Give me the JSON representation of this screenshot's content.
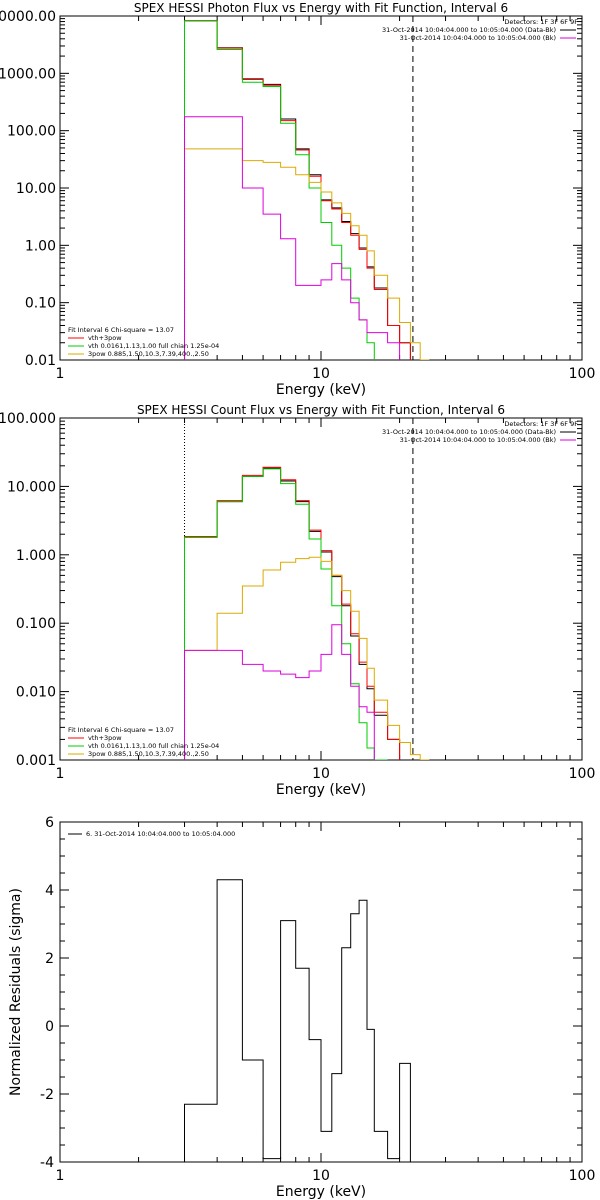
{
  "chart_data": [
    {
      "type": "line",
      "title": "SPEX HESSI Photon Flux vs Energy with Fit Function, Interval 6",
      "xlabel": "Energy (keV)",
      "ylabel": "",
      "xscale": "log",
      "yscale": "log",
      "xlim": [
        1,
        100
      ],
      "ylim": [
        0.01,
        10000
      ],
      "xtick_labels": [
        "1",
        "10",
        "100"
      ],
      "ytick_labels": [
        "0.01",
        "0.10",
        "1.00",
        "10.00",
        "100.00",
        "1000.00",
        "10000.00"
      ],
      "legend_topright": [
        "Detectors: 1F 3F 6F 9F",
        "31-Oct-2014 10:04:04.000 to 10:05:04.000 (Data-Bk)",
        "31-Oct-2014 10:04:04.000 to 10:05:04.000 (Bk)"
      ],
      "legend_bottomleft": [
        "Fit Interval  6     Chi-square = 13.07",
        "vth+3pow",
        "vth 0.0161,1.13,1.00   full chian 1.25e-04",
        "3pow  0.885,1.50,10.3,7.39,400.,2.50"
      ],
      "vlines": [
        {
          "x": 3.0,
          "style": "dotted"
        },
        {
          "x": 22.5,
          "style": "dashed"
        }
      ],
      "bin_edges": [
        3.0,
        4.0,
        5.0,
        6.0,
        7.0,
        8.0,
        9.0,
        10.0,
        11.0,
        12.0,
        13.0,
        14.0,
        15.0,
        16.0,
        18.0,
        20.0,
        22.0,
        24.0,
        26.0
      ],
      "series": [
        {
          "name": "Data-Bk",
          "color": "#000000",
          "values": [
            8200,
            2800,
            800,
            640,
            160,
            48,
            17,
            6.2,
            4.5,
            2.6,
            1.6,
            0.9,
            0.42,
            0.18,
            0.04,
            0.02,
            null,
            null
          ]
        },
        {
          "name": "vth+3pow",
          "color": "#ff0000",
          "values": [
            8300,
            2750,
            780,
            620,
            150,
            46,
            16,
            6.0,
            4.3,
            2.5,
            1.5,
            0.85,
            0.4,
            0.17,
            0.04,
            0.02,
            null,
            null
          ]
        },
        {
          "name": "vth",
          "color": "#00cc00",
          "values": [
            8200,
            2600,
            700,
            590,
            135,
            38,
            10,
            2.5,
            1.0,
            0.4,
            0.12,
            0.05,
            0.02,
            null,
            null,
            null,
            null,
            null
          ]
        },
        {
          "name": "3pow",
          "color": "#ddaa00",
          "values": [
            48,
            48,
            30,
            28,
            23,
            17,
            12.5,
            8.5,
            5.5,
            3.6,
            2.2,
            1.5,
            0.8,
            0.3,
            0.12,
            0.045,
            0.02,
            0.01
          ]
        },
        {
          "name": "Bk",
          "color": "#dd00dd",
          "values": [
            175,
            175,
            10,
            3.5,
            1.3,
            0.2,
            0.2,
            0.25,
            0.48,
            0.25,
            0.1,
            0.05,
            0.03,
            0.03,
            0.02,
            null,
            null,
            null
          ]
        }
      ]
    },
    {
      "type": "line",
      "title": "SPEX HESSI Count Flux vs Energy with Fit Function, Interval 6",
      "xlabel": "Energy (keV)",
      "ylabel": "",
      "xscale": "log",
      "yscale": "log",
      "xlim": [
        1,
        100
      ],
      "ylim": [
        0.001,
        100
      ],
      "xtick_labels": [
        "1",
        "10",
        "100"
      ],
      "ytick_labels": [
        "0.001",
        "0.010",
        "0.100",
        "1.000",
        "10.000",
        "100.000"
      ],
      "legend_topright": [
        "Detectors: 1F 3F 6F 9F",
        "31-Oct-2014 10:04:04.000 to 10:05:04.000 (Data-Bk)",
        "31-Oct-2014 10:04:04.000 to 10:05:04.000 (Bk)"
      ],
      "legend_bottomleft": [
        "Fit Interval  6     Chi-square = 13.07",
        "vth+3pow",
        "vth 0.0161,1.13,1.00   full chian 1.25e-04",
        "3pow  0.885,1.50,10.3,7.39,400.,2.50"
      ],
      "vlines": [
        {
          "x": 3.0,
          "style": "dotted"
        },
        {
          "x": 22.5,
          "style": "dashed"
        }
      ],
      "bin_edges": [
        3.0,
        4.0,
        5.0,
        6.0,
        7.0,
        8.0,
        9.0,
        10.0,
        11.0,
        12.0,
        13.0,
        14.0,
        15.0,
        16.0,
        18.0,
        20.0,
        22.0,
        24.0,
        26.0
      ],
      "series": [
        {
          "name": "Data-Bk",
          "color": "#000000",
          "values": [
            1.8,
            6.0,
            14,
            18.5,
            12,
            6,
            2.2,
            1.1,
            0.48,
            0.18,
            0.065,
            0.025,
            0.011,
            0.0045,
            0.002,
            null,
            null,
            null
          ]
        },
        {
          "name": "vth+3pow",
          "color": "#ff0000",
          "values": [
            1.85,
            6.2,
            14.5,
            19,
            12.5,
            6.2,
            2.3,
            1.15,
            0.5,
            0.19,
            0.07,
            0.027,
            0.012,
            0.005,
            0.002,
            null,
            null,
            null
          ]
        },
        {
          "name": "vth",
          "color": "#00cc00",
          "values": [
            1.8,
            6.0,
            14,
            18,
            11,
            5.5,
            1.7,
            0.62,
            0.18,
            0.05,
            0.013,
            0.0035,
            0.0015,
            0.001,
            null,
            null,
            null,
            null
          ]
        },
        {
          "name": "3pow",
          "color": "#ddaa00",
          "values": [
            0.04,
            0.14,
            0.35,
            0.6,
            0.78,
            0.88,
            0.92,
            0.8,
            0.5,
            0.3,
            0.15,
            0.06,
            0.022,
            0.0075,
            0.0032,
            0.0018,
            0.0012,
            0.001
          ]
        },
        {
          "name": "Bk",
          "color": "#dd00dd",
          "values": [
            0.04,
            0.04,
            0.025,
            0.02,
            0.018,
            0.016,
            0.02,
            0.035,
            0.095,
            0.035,
            0.012,
            0.006,
            0.005,
            null,
            null,
            null,
            null,
            null
          ]
        }
      ]
    },
    {
      "type": "line",
      "title": "",
      "xlabel": "Energy (keV)",
      "ylabel": "Normalized Residuals (sigma)",
      "xscale": "log",
      "yscale": "linear",
      "xlim": [
        1,
        100
      ],
      "ylim": [
        -4,
        6
      ],
      "xtick_labels": [
        "1",
        "10",
        "100"
      ],
      "ytick_labels": [
        "-4",
        "-2",
        "0",
        "2",
        "4",
        "6"
      ],
      "legend_topleft": [
        "6. 31-Oct-2014 10:04:04.000 to 10:05:04.000"
      ],
      "bin_edges": [
        3.0,
        4.0,
        5.0,
        6.0,
        7.0,
        8.0,
        9.0,
        10.0,
        11.0,
        12.0,
        13.0,
        14.0,
        15.0,
        16.0,
        18.0,
        20.0,
        22.0
      ],
      "series": [
        {
          "name": "",
          "color": "#000000",
          "values": [
            -2.3,
            4.3,
            -1.0,
            -3.9,
            3.1,
            1.7,
            -0.4,
            -3.1,
            -1.4,
            2.3,
            3.3,
            3.7,
            -0.1,
            -3.1,
            -3.9,
            -1.1
          ]
        }
      ]
    }
  ]
}
